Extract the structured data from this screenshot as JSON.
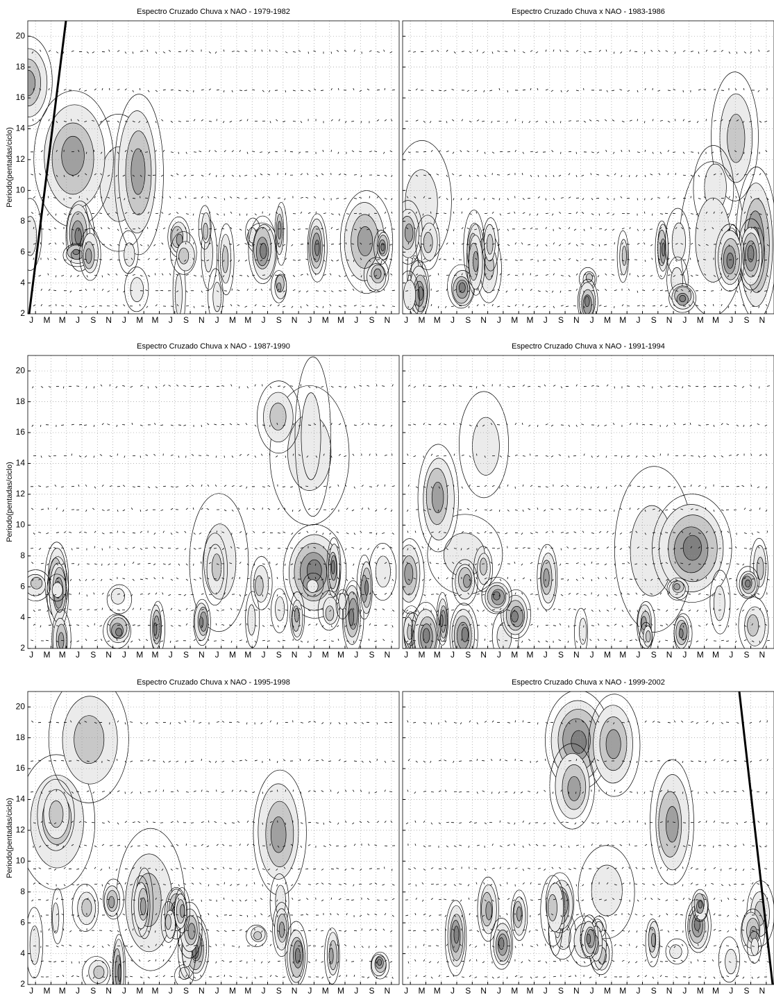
{
  "chart_data": [
    {
      "type": "contour",
      "title": "Espectro Cruzado Chuva x NAO - 1979-1982",
      "ylabel": "Periodo(pentadas/ciclo)",
      "categories": [
        "J",
        "M",
        "M",
        "J",
        "S",
        "N",
        "J",
        "M",
        "M",
        "J",
        "S",
        "N",
        "J",
        "M",
        "M",
        "J",
        "S",
        "N",
        "J",
        "M",
        "M",
        "J",
        "S",
        "N"
      ],
      "ylim": [
        2,
        21
      ],
      "yticks": [
        2,
        4,
        6,
        8,
        10,
        12,
        14,
        16,
        18,
        20
      ],
      "grid": true
    },
    {
      "type": "contour",
      "title": "Espectro Cruzado Chuva x NAO - 1983-1986",
      "categories": [
        "J",
        "M",
        "M",
        "J",
        "S",
        "N",
        "J",
        "M",
        "M",
        "J",
        "S",
        "N",
        "J",
        "M",
        "M",
        "J",
        "S",
        "N",
        "J",
        "M",
        "M",
        "J",
        "S",
        "N"
      ],
      "ylim": [
        2,
        21
      ],
      "grid": true
    },
    {
      "type": "contour",
      "title": "Espectro Cruzado Chuva x NAO - 1987-1990",
      "ylabel": "Periodo(pentadas/ciclo)",
      "categories": [
        "J",
        "M",
        "M",
        "J",
        "S",
        "N",
        "J",
        "M",
        "M",
        "J",
        "S",
        "N",
        "J",
        "M",
        "M",
        "J",
        "S",
        "N",
        "J",
        "M",
        "M",
        "J",
        "S",
        "N"
      ],
      "ylim": [
        2,
        21
      ],
      "yticks": [
        2,
        4,
        6,
        8,
        10,
        12,
        14,
        16,
        18,
        20
      ],
      "grid": true
    },
    {
      "type": "contour",
      "title": "Espectro Cruzado Chuva x NAO - 1991-1994",
      "categories": [
        "J",
        "M",
        "M",
        "J",
        "S",
        "N",
        "J",
        "M",
        "M",
        "J",
        "S",
        "N",
        "J",
        "M",
        "M",
        "J",
        "S",
        "N",
        "J",
        "M",
        "M",
        "J",
        "S",
        "N"
      ],
      "ylim": [
        2,
        21
      ],
      "grid": true
    },
    {
      "type": "contour",
      "title": "Espectro Cruzado Chuva x NAO - 1995-1998",
      "ylabel": "Periodo(pentadas/ciclo)",
      "categories": [
        "J",
        "M",
        "M",
        "J",
        "S",
        "N",
        "J",
        "M",
        "M",
        "J",
        "S",
        "N",
        "J",
        "M",
        "M",
        "J",
        "S",
        "N",
        "J",
        "M",
        "M",
        "J",
        "S",
        "N"
      ],
      "ylim": [
        2,
        21
      ],
      "yticks": [
        2,
        4,
        6,
        8,
        10,
        12,
        14,
        16,
        18,
        20
      ],
      "grid": true
    },
    {
      "type": "contour",
      "title": "Espectro Cruzado Chuva x NAO - 1999-2002",
      "categories": [
        "J",
        "M",
        "M",
        "J",
        "S",
        "N",
        "J",
        "M",
        "M",
        "J",
        "S",
        "N",
        "J",
        "M",
        "M",
        "J",
        "S",
        "N",
        "J",
        "M",
        "M",
        "J",
        "S",
        "N"
      ],
      "ylim": [
        2,
        21
      ],
      "grid": true
    }
  ]
}
